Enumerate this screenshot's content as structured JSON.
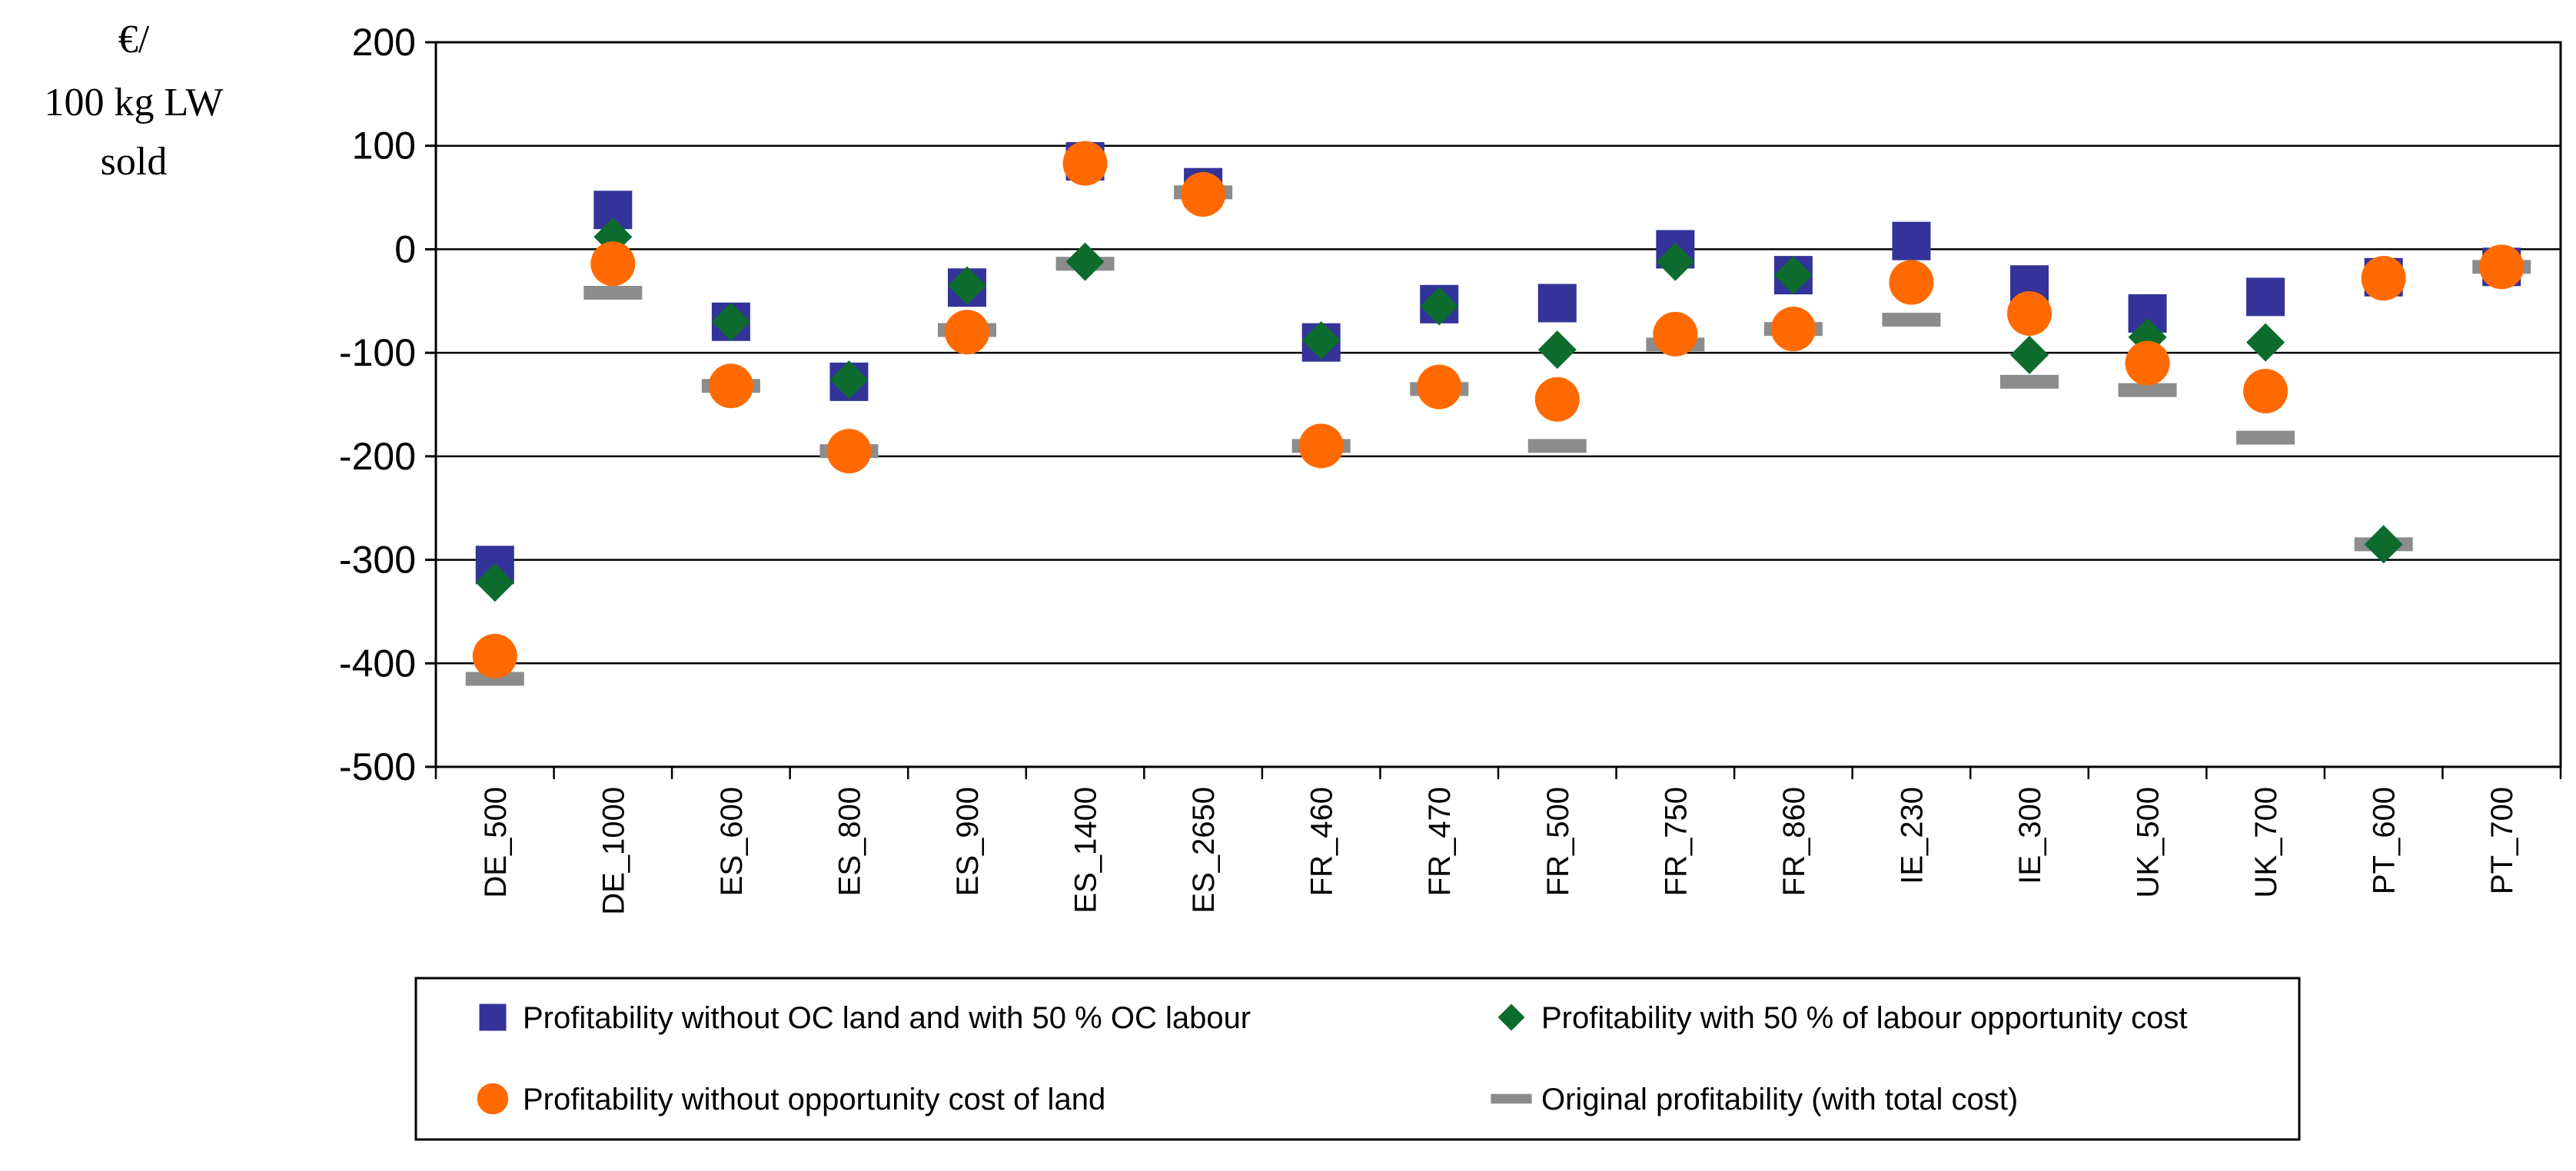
{
  "chart_data": {
    "type": "scatter",
    "title": "",
    "ylabel_lines": [
      "€/",
      "100 kg LW",
      "sold"
    ],
    "xlabel": "",
    "ylim": [
      -500,
      200
    ],
    "yticks": [
      200,
      100,
      0,
      -100,
      -200,
      -300,
      -400,
      -500
    ],
    "grid": true,
    "legend_position": "bottom",
    "categories": [
      "DE_500",
      "DE_1000",
      "ES_600",
      "ES_800",
      "ES_900",
      "ES_1400",
      "ES_2650",
      "FR_460",
      "FR_470",
      "FR_500",
      "FR_750",
      "FR_860",
      "IE_230",
      "IE_300",
      "UK_500",
      "UK_700",
      "PT_600",
      "PT_700"
    ],
    "series": [
      {
        "name": "Profitability without OC land and with 50 % OC labour",
        "marker": "square",
        "color": "#333399",
        "values": [
          -305,
          38,
          -70,
          -128,
          -37,
          85,
          60,
          -90,
          -53,
          -52,
          0,
          -25,
          8,
          -34,
          -62,
          -46,
          -27,
          -17
        ]
      },
      {
        "name": "Profitability with 50 % of labour opportunity cost",
        "marker": "diamond",
        "color": "#0D6B2E",
        "values": [
          -322,
          12,
          -70,
          -126,
          -35,
          -12,
          58,
          -88,
          -55,
          -97,
          -12,
          -25,
          -32,
          -102,
          -85,
          -90,
          -285,
          -17
        ]
      },
      {
        "name": "Profitability without opportunity cost of land",
        "marker": "circle",
        "color": "#FF6A00",
        "values": [
          -393,
          -14,
          -132,
          -195,
          -80,
          83,
          53,
          -190,
          -133,
          -145,
          -82,
          -77,
          -32,
          -62,
          -110,
          -137,
          -28,
          -17
        ]
      },
      {
        "name": "Original profitability (with total cost)",
        "marker": "dash",
        "color": "#8C8C8C",
        "values": [
          -415,
          -42,
          -132,
          -195,
          -78,
          -14,
          55,
          -190,
          -135,
          -190,
          -92,
          -77,
          -68,
          -128,
          -136,
          -182,
          -285,
          -17
        ]
      }
    ]
  }
}
